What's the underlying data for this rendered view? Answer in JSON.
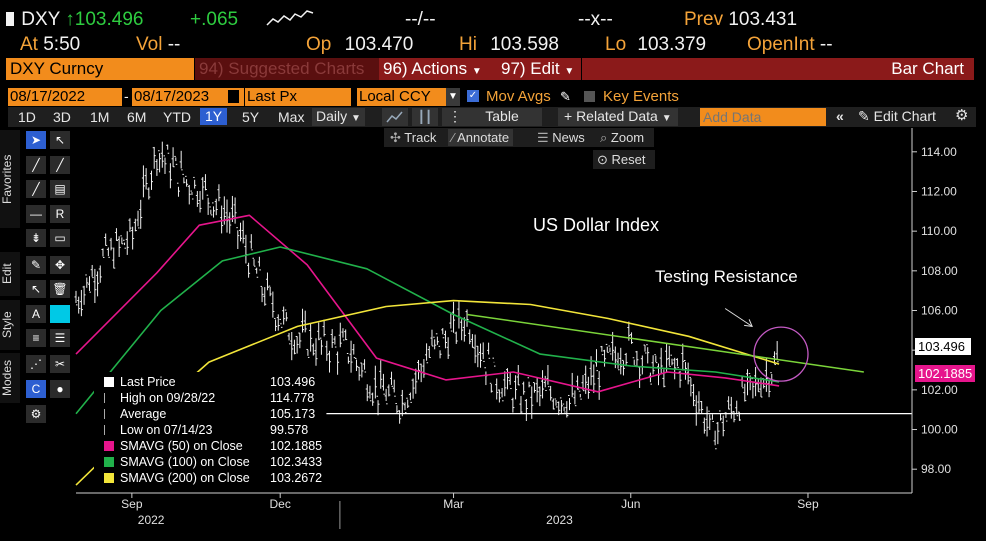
{
  "header": {
    "ticker": "DXY",
    "arrow": "↑",
    "last": "103.496",
    "change": "+.065",
    "bidask1": "--/--",
    "bidask2": "--x--",
    "prev_label": "Prev",
    "prev_value": "103.431",
    "at_label": "At",
    "at_value": "5:50",
    "vol_label": "Vol",
    "vol_value": "--",
    "op_label": "Op",
    "op_value": "103.470",
    "hi_label": "Hi",
    "hi_value": "103.598",
    "lo_label": "Lo",
    "lo_value": "103.379",
    "openint_label": "OpenInt",
    "openint_value": "--"
  },
  "toolbar": {
    "security": "DXY Curncy",
    "suggested": "94) Suggested Charts",
    "actions": "96) Actions",
    "edit": "97) Edit",
    "chart_type": "Bar Chart",
    "date_from": "08/17/2022",
    "date_to": "08/17/2023",
    "field": "Last Px",
    "currency": "Local CCY",
    "mov_avgs": "Mov Avgs",
    "key_events": "Key Events",
    "ranges": [
      "1D",
      "3D",
      "1M",
      "6M",
      "YTD",
      "1Y",
      "5Y",
      "Max"
    ],
    "active_range": "1Y",
    "periodicity": "Daily",
    "table": "Table",
    "related": "+ Related Data",
    "add_data_placeholder": "Add Data",
    "edit_chart": "Edit Chart",
    "track": "Track",
    "annotate": "Annotate",
    "news": "News",
    "zoom": "Zoom",
    "reset": "Reset"
  },
  "side_tabs": [
    "Favorites",
    "Edit",
    "Style",
    "Modes"
  ],
  "legend": [
    {
      "label": "Last Price",
      "value": "103.496",
      "color": "#ffffff"
    },
    {
      "label": "High on 09/28/22",
      "value": "114.778",
      "color": "#aaaaaa"
    },
    {
      "label": "Average",
      "value": "105.173",
      "color": "#aaaaaa"
    },
    {
      "label": "Low on 07/14/23",
      "value": "99.578",
      "color": "#aaaaaa"
    },
    {
      "label": "SMAVG (50)  on Close",
      "value": "102.1885",
      "color": "#e6158c"
    },
    {
      "label": "SMAVG (100)  on Close",
      "value": "102.3433",
      "color": "#21b14b"
    },
    {
      "label": "SMAVG (200)  on Close",
      "value": "103.2672",
      "color": "#f2e53a"
    }
  ],
  "chart_data": {
    "type": "line",
    "title": "US Dollar Index",
    "annotation": "Testing Resistance",
    "x_ticks": [
      "Sep",
      "Dec",
      "Mar",
      "Jun",
      "Sep"
    ],
    "x_years": [
      "2022",
      "2023"
    ],
    "y_ticks": [
      "114.00",
      "112.00",
      "110.00",
      "108.00",
      "106.00",
      "104.00",
      "102.00",
      "100.00",
      "98.00"
    ],
    "ylim": [
      96.8,
      115.2
    ],
    "last_price_label": "103.496",
    "sma50_label": "102.1885",
    "support_level": 100.8,
    "series": [
      {
        "name": "Last Price",
        "color": "#ffffff",
        "x": [
          "2022-08-17",
          "2022-08-31",
          "2022-09-15",
          "2022-09-28",
          "2022-10-10",
          "2022-10-24",
          "2022-11-08",
          "2022-11-22",
          "2022-12-06",
          "2022-12-20",
          "2023-01-05",
          "2023-01-19",
          "2023-02-02",
          "2023-02-16",
          "2023-03-08",
          "2023-03-22",
          "2023-04-05",
          "2023-04-19",
          "2023-05-03",
          "2023-05-17",
          "2023-05-31",
          "2023-06-14",
          "2023-06-28",
          "2023-07-13",
          "2023-07-27",
          "2023-08-10",
          "2023-08-17"
        ],
        "values": [
          106.5,
          108.6,
          109.7,
          114.1,
          112.8,
          111.9,
          110.3,
          107.1,
          104.9,
          104.3,
          104.1,
          102.1,
          101.4,
          103.8,
          105.6,
          102.6,
          101.6,
          101.9,
          101.4,
          103.2,
          104.3,
          102.9,
          103.3,
          99.8,
          101.4,
          102.7,
          103.5
        ]
      },
      {
        "name": "SMAVG (50) on Close",
        "color": "#e6158c",
        "x": [
          "2022-08-17",
          "2022-09-28",
          "2022-10-20",
          "2022-11-15",
          "2022-12-15",
          "2023-01-20",
          "2023-02-25",
          "2023-04-01",
          "2023-05-15",
          "2023-06-20",
          "2023-07-20",
          "2023-08-17"
        ],
        "values": [
          103.8,
          107.9,
          110.3,
          110.8,
          108.3,
          103.6,
          102.5,
          102.9,
          101.9,
          102.9,
          102.6,
          102.2
        ]
      },
      {
        "name": "SMAVG (100) on Close",
        "color": "#21b14b",
        "x": [
          "2022-08-17",
          "2022-09-30",
          "2022-11-01",
          "2022-12-01",
          "2023-01-15",
          "2023-03-01",
          "2023-04-15",
          "2023-06-01",
          "2023-07-15",
          "2023-08-17"
        ],
        "values": [
          100.8,
          106.0,
          108.5,
          109.2,
          108.1,
          105.8,
          103.8,
          103.2,
          102.9,
          102.4
        ]
      },
      {
        "name": "SMAVG (200) on Close",
        "color": "#f2e53a",
        "x": [
          "2022-08-17",
          "2022-09-20",
          "2022-10-25",
          "2022-12-10",
          "2023-01-25",
          "2023-03-01",
          "2023-04-10",
          "2023-05-20",
          "2023-07-01",
          "2023-08-17"
        ],
        "values": [
          97.2,
          100.4,
          103.4,
          105.2,
          106.2,
          106.5,
          106.3,
          105.6,
          104.7,
          103.3
        ]
      }
    ],
    "resistance_line": {
      "x": [
        "2023-03-08",
        "2023-09-30"
      ],
      "values": [
        105.8,
        102.9
      ]
    }
  }
}
